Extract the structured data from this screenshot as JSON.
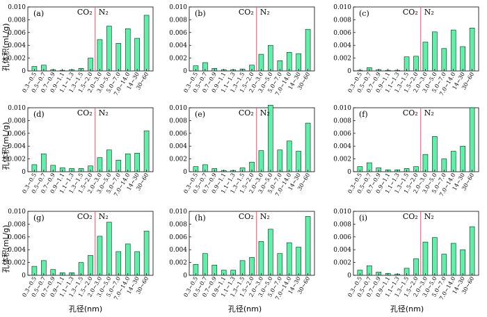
{
  "axis_labels": {
    "ylabel": "孔体积(mL/g)",
    "xlabel": "孔径(nm)"
  },
  "chart_data": [
    {
      "panel": "(a)",
      "type": "bar",
      "co2_label": "CO₂",
      "n2_label": "N₂",
      "ylim": [
        0,
        0.01
      ],
      "yticks": [
        "0",
        "0.002",
        "0.004",
        "0.006",
        "0.008",
        "0.010"
      ],
      "categories": [
        "0.3~0.5",
        "0.5~0.7",
        "0.7~0.9",
        "0.9~1.1",
        "1.1~1.3",
        "1.3~1.5",
        "1.5~2.0",
        "2.0~3.0",
        "3.0~5.0",
        "5.0~7.0",
        "7.0~14.0",
        "14~30",
        "30~60"
      ],
      "values": [
        0.0007,
        0.0009,
        0.0002,
        0.0001,
        0.0002,
        0.0004,
        0.002,
        0.0049,
        0.007,
        0.0043,
        0.0066,
        0.0051,
        0.0087
      ]
    },
    {
      "panel": "(b)",
      "type": "bar",
      "co2_label": "CO₂",
      "n2_label": "N₂",
      "ylim": [
        0,
        0.01
      ],
      "yticks": [
        "0",
        "0.002",
        "0.004",
        "0.006",
        "0.008",
        "0.010"
      ],
      "categories": [
        "0.3~0.5",
        "0.5~0.7",
        "0.7~0.9",
        "0.9~1.1",
        "1.1~1.3",
        "1.3~1.5",
        "1.5~2.0",
        "2.0~3.0",
        "3.0~5.0",
        "5.0~7.0",
        "7.0~14.0",
        "14~30",
        "30~60"
      ],
      "values": [
        0.0008,
        0.0013,
        0.0004,
        0.0002,
        0.0002,
        0.0003,
        0.0009,
        0.0026,
        0.004,
        0.0016,
        0.0029,
        0.0027,
        0.0065
      ]
    },
    {
      "panel": "(c)",
      "type": "bar",
      "co2_label": "CO₂",
      "n2_label": "N₂",
      "ylim": [
        0,
        0.01
      ],
      "yticks": [
        "0",
        "0.002",
        "0.004",
        "0.006",
        "0.008",
        "0.010"
      ],
      "categories": [
        "0.3~0.5",
        "0.5~0.7",
        "0.7~0.9",
        "0.9~1.1",
        "1.1~1.3",
        "1.3~1.5",
        "1.5~2.0",
        "2.0~3.0",
        "3.0~5.0",
        "5.0~7.0",
        "7.0~14.0",
        "14~30",
        "30~60"
      ],
      "values": [
        0.0001,
        0.0005,
        0.0002,
        0.0001,
        0.0001,
        0.0022,
        0.0023,
        0.0045,
        0.0061,
        0.0035,
        0.0064,
        0.0038,
        0.0067
      ]
    },
    {
      "panel": "(d)",
      "type": "bar",
      "co2_label": "CO₂",
      "n2_label": "N₂",
      "ylim": [
        0,
        0.01
      ],
      "yticks": [
        "0",
        "0.002",
        "0.004",
        "0.006",
        "0.008",
        "0.010"
      ],
      "categories": [
        "0.3~0.5",
        "0.5~0.7",
        "0.7~0.9",
        "0.9~1.1",
        "1.1~1.3",
        "1.3~1.5",
        "1.5~2.0",
        "2.0~3.0",
        "3.0~5.0",
        "5.0~7.0",
        "7.0~14.0",
        "14~30",
        "30~60"
      ],
      "values": [
        0.0011,
        0.0028,
        0.001,
        0.0006,
        0.0005,
        0.0005,
        0.0009,
        0.0022,
        0.0034,
        0.0018,
        0.0028,
        0.0029,
        0.0064
      ]
    },
    {
      "panel": "(e)",
      "type": "bar",
      "co2_label": "CO₂",
      "n2_label": "N₂",
      "ylim": [
        0,
        0.01
      ],
      "yticks": [
        "0",
        "0.002",
        "0.004",
        "0.006",
        "0.008",
        "0.010"
      ],
      "categories": [
        "0.3~0.5",
        "0.5~0.7",
        "0.7~0.9",
        "0.9~1.1",
        "1.1~1.3",
        "1.3~1.5",
        "1.5~2.0",
        "2.0~3.0",
        "3.0~5.0",
        "5.0~7.0",
        "7.0~14.0",
        "14~30",
        "30~60"
      ],
      "values": [
        0.0008,
        0.0011,
        0.0005,
        0.0002,
        0.0002,
        0.0006,
        0.0015,
        0.0033,
        0.0104,
        0.0034,
        0.0048,
        0.0032,
        0.0076
      ]
    },
    {
      "panel": "(f)",
      "type": "bar",
      "co2_label": "CO₂",
      "n2_label": "N₂",
      "ylim": [
        0,
        0.01
      ],
      "yticks": [
        "0",
        "0.002",
        "0.004",
        "0.006",
        "0.008",
        "0.010"
      ],
      "categories": [
        "0.3~0.5",
        "0.5~0.7",
        "0.7~0.9",
        "0.9~1.1",
        "1.1~1.3",
        "1.3~1.5",
        "1.5~2.0",
        "2.0~3.0",
        "3.0~5.0",
        "5.0~7.0",
        "7.0~14.0",
        "14~30",
        "30~60"
      ],
      "values": [
        0.0008,
        0.0014,
        0.0006,
        0.0003,
        0.0003,
        0.0005,
        0.0008,
        0.0027,
        0.0055,
        0.002,
        0.0032,
        0.004,
        0.01
      ]
    },
    {
      "panel": "(g)",
      "type": "bar",
      "co2_label": "CO₂",
      "n2_label": "N₂",
      "ylim": [
        0,
        0.01
      ],
      "yticks": [
        "0",
        "0.002",
        "0.004",
        "0.006",
        "0.008",
        "0.010"
      ],
      "categories": [
        "0.3~0.5",
        "0.5~0.7",
        "0.7~0.9",
        "0.9~1.1",
        "1.1~1.3",
        "1.3~1.5",
        "1.5~2.0",
        "2.0~3.0",
        "3.0~5.0",
        "5.0~7.0",
        "7.0~14.0",
        "14~30",
        "30~60"
      ],
      "values": [
        0.0014,
        0.0023,
        0.0009,
        0.0004,
        0.0004,
        0.002,
        0.0031,
        0.0061,
        0.0083,
        0.0037,
        0.0049,
        0.0037,
        0.0069
      ]
    },
    {
      "panel": "(h)",
      "type": "bar",
      "co2_label": "CO₂",
      "n2_label": "N₂",
      "ylim": [
        0,
        0.01
      ],
      "yticks": [
        "0",
        "0.002",
        "0.004",
        "0.006",
        "0.008",
        "0.010"
      ],
      "categories": [
        "0.3~0.5",
        "0.5~0.7",
        "0.7~0.9",
        "0.9~1.1",
        "1.1~1.3",
        "1.3~1.5",
        "1.5~2.0",
        "2.0~3.0",
        "3.0~5.0",
        "5.0~7.0",
        "7.0~14.0",
        "14~30",
        "30~60"
      ],
      "values": [
        0.0017,
        0.0034,
        0.0016,
        0.0008,
        0.0008,
        0.0023,
        0.0028,
        0.0053,
        0.0072,
        0.0034,
        0.0051,
        0.0044,
        0.0092
      ]
    },
    {
      "panel": "(i)",
      "type": "bar",
      "co2_label": "CO₂",
      "n2_label": "N₂",
      "ylim": [
        0,
        0.01
      ],
      "yticks": [
        "0",
        "0.002",
        "0.004",
        "0.006",
        "0.008",
        "0.010"
      ],
      "categories": [
        "0.3~0.5",
        "0.5~0.7",
        "0.7~0.9",
        "0.9~1.1",
        "1.1~1.3",
        "1.3~1.5",
        "1.5~2.0",
        "2.0~3.0",
        "3.0~5.0",
        "5.0~7.0",
        "7.0~14.0",
        "14~30",
        "30~60"
      ],
      "values": [
        0.0008,
        0.0015,
        0.0005,
        0.0003,
        0.0002,
        0.0011,
        0.0026,
        0.0052,
        0.0059,
        0.0033,
        0.005,
        0.004,
        0.0076
      ]
    }
  ],
  "colors": {
    "bar_fill": "#5ef0a8",
    "bar_stroke": "#1a1a1a",
    "divider": "#e06070",
    "axis": "#000000"
  }
}
